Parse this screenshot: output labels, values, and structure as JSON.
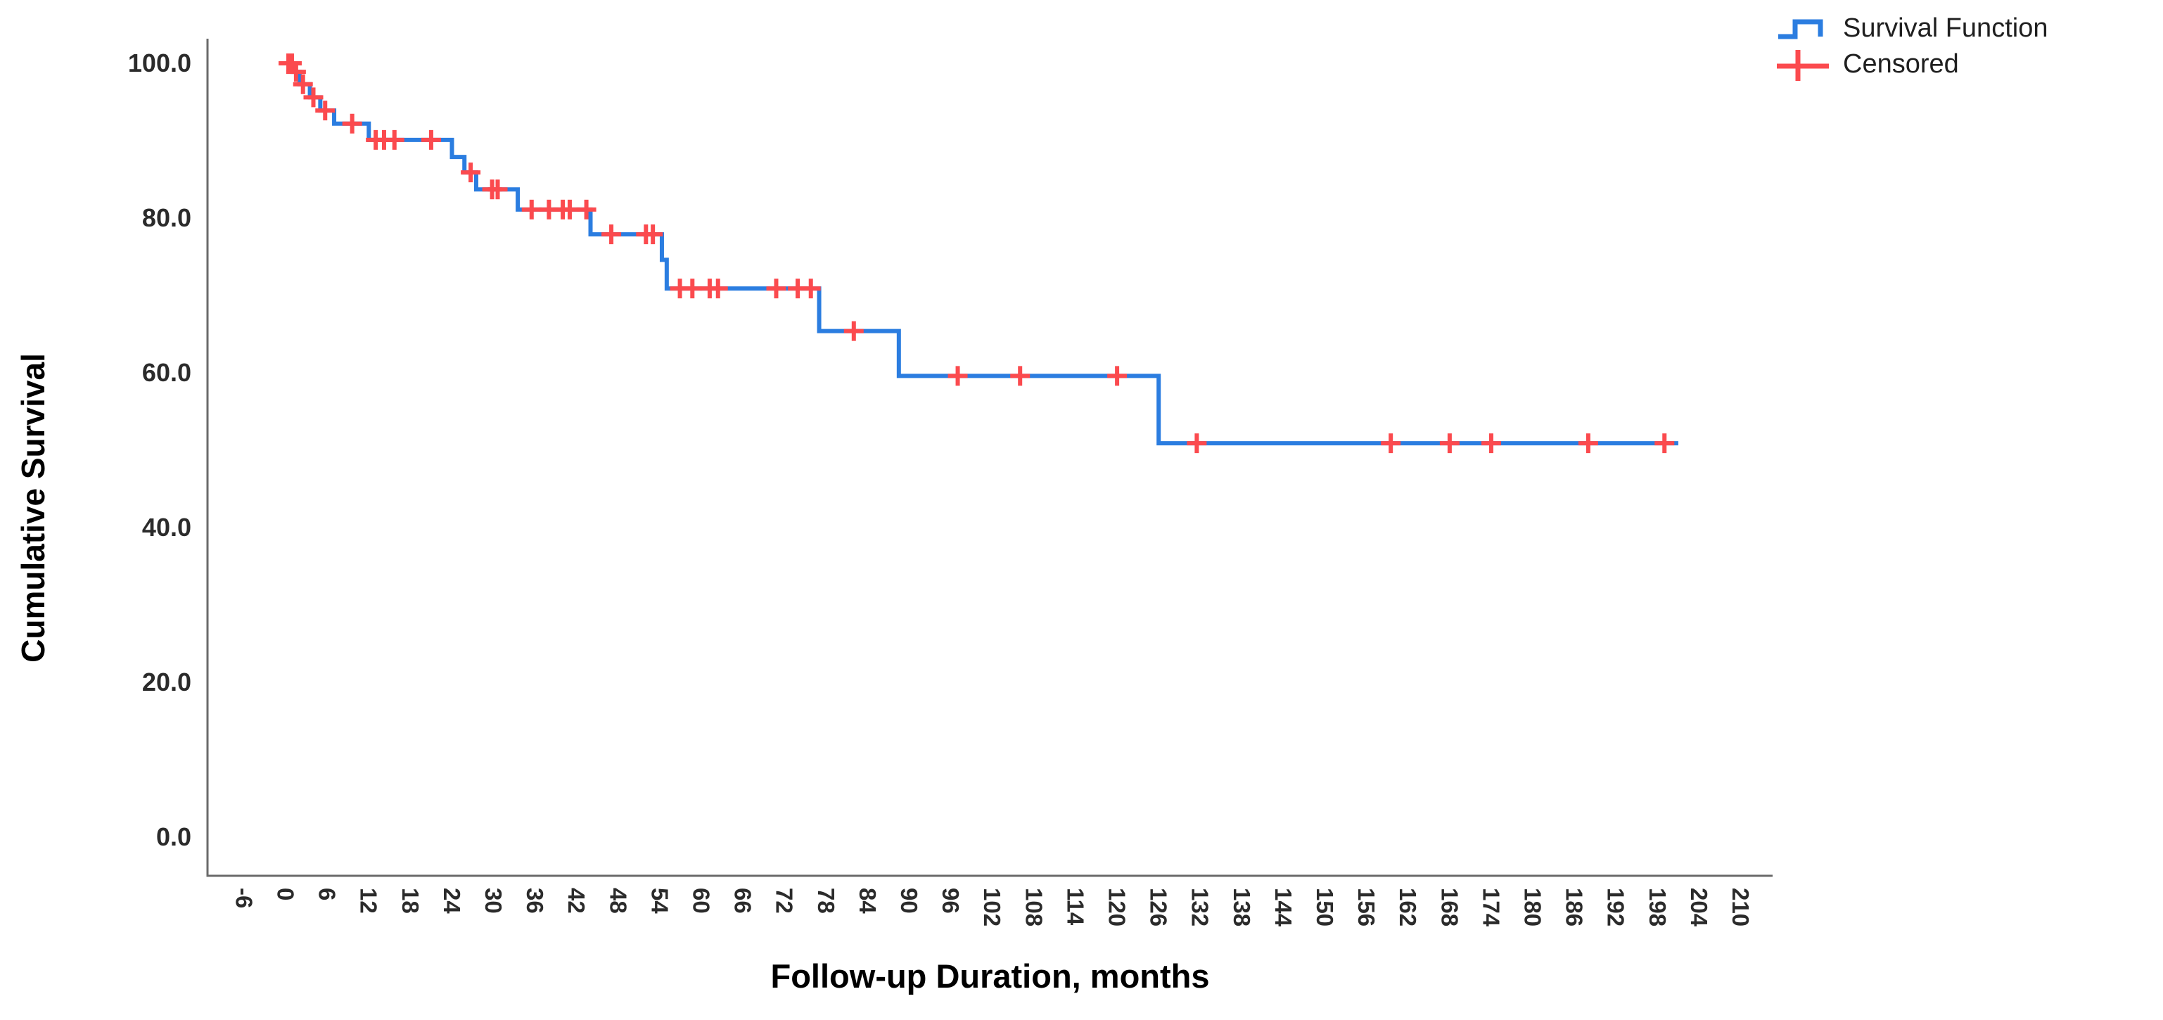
{
  "legend": {
    "items": [
      {
        "label": "Survival Function",
        "marker": "step-line-icon"
      },
      {
        "label": "Censored",
        "marker": "plus-icon"
      }
    ]
  },
  "chart_data": {
    "type": "line",
    "subtype": "kaplan-meier-step",
    "title": "",
    "xlabel": "Follow-up Duration, months",
    "ylabel": "Cumulative Survival",
    "xlim": [
      -6,
      210
    ],
    "ylim": [
      0,
      100
    ],
    "grid": false,
    "legend_position": "top-right",
    "x_ticks": [
      -6,
      0,
      6,
      12,
      18,
      24,
      30,
      36,
      42,
      48,
      54,
      60,
      66,
      72,
      78,
      84,
      90,
      96,
      102,
      108,
      114,
      120,
      126,
      132,
      138,
      144,
      150,
      156,
      162,
      168,
      174,
      180,
      186,
      192,
      198,
      204,
      210
    ],
    "x_tick_rotation_deg": 90,
    "y_ticks": [
      {
        "value": 100,
        "label": "100.0"
      },
      {
        "value": 80,
        "label": "80.0"
      },
      {
        "value": 60,
        "label": "60.0"
      },
      {
        "value": 40,
        "label": "40.0"
      },
      {
        "value": 20,
        "label": "20.0"
      },
      {
        "value": 0,
        "label": "0.0"
      }
    ],
    "series": [
      {
        "name": "Survival Function",
        "color": "#2b7de0",
        "style": "step-post",
        "steps": [
          [
            0,
            100.0
          ],
          [
            1,
            98.9
          ],
          [
            2,
            97.3
          ],
          [
            3.5,
            95.6
          ],
          [
            5,
            93.9
          ],
          [
            7,
            92.2
          ],
          [
            12,
            90.1
          ],
          [
            24,
            87.9
          ],
          [
            25.8,
            85.9
          ],
          [
            27.5,
            83.7
          ],
          [
            33.5,
            81.1
          ],
          [
            44,
            77.9
          ],
          [
            54.3,
            74.6
          ],
          [
            55,
            70.9
          ],
          [
            77,
            65.4
          ],
          [
            88.5,
            59.6
          ],
          [
            126,
            50.9
          ]
        ],
        "end_time": 201
      }
    ],
    "censored": {
      "name": "Censored",
      "color": "#fb4a4e",
      "points": [
        [
          0.4,
          100.0
        ],
        [
          0.9,
          100.0
        ],
        [
          1.5,
          98.9
        ],
        [
          2.5,
          97.3
        ],
        [
          4,
          95.6
        ],
        [
          5.7,
          93.9
        ],
        [
          9.6,
          92.2
        ],
        [
          13,
          90.1
        ],
        [
          14.2,
          90.1
        ],
        [
          15.7,
          90.1
        ],
        [
          21,
          90.1
        ],
        [
          26.7,
          85.9
        ],
        [
          29.8,
          83.7
        ],
        [
          30.6,
          83.7
        ],
        [
          35.5,
          81.1
        ],
        [
          38,
          81.1
        ],
        [
          40,
          81.1
        ],
        [
          41,
          81.1
        ],
        [
          43.4,
          81.1
        ],
        [
          47,
          77.9
        ],
        [
          52,
          77.9
        ],
        [
          53,
          77.9
        ],
        [
          56.9,
          70.9
        ],
        [
          58.7,
          70.9
        ],
        [
          61.2,
          70.9
        ],
        [
          62.4,
          70.9
        ],
        [
          70.8,
          70.9
        ],
        [
          73.9,
          70.9
        ],
        [
          75.8,
          70.9
        ],
        [
          82,
          65.4
        ],
        [
          97,
          59.6
        ],
        [
          106,
          59.6
        ],
        [
          120,
          59.6
        ],
        [
          131.5,
          50.9
        ],
        [
          159.5,
          50.9
        ],
        [
          168,
          50.9
        ],
        [
          174,
          50.9
        ],
        [
          188,
          50.9
        ],
        [
          199,
          50.9
        ]
      ]
    },
    "colors": {
      "axis_line": "#6a6a6a",
      "tick_text": "#2b2b2b",
      "title_text": "#000000",
      "background": "#ffffff"
    }
  }
}
